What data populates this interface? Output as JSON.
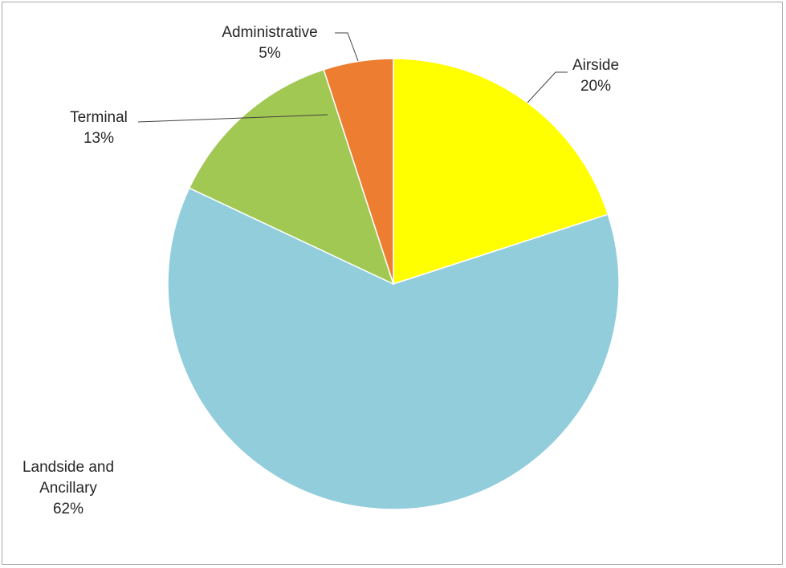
{
  "chart_data": {
    "type": "pie",
    "title": "",
    "legend": "none",
    "start_angle_deg": 0,
    "direction": "clockwise",
    "slices": [
      {
        "label": "Airside",
        "value": 20,
        "display": "20%",
        "color": "#ffff00"
      },
      {
        "label": "Landside and Ancillary",
        "value": 62,
        "display": "62%",
        "color": "#92cddc"
      },
      {
        "label": "Terminal",
        "value": 13,
        "display": "13%",
        "color": "#a1c853"
      },
      {
        "label": "Administrative",
        "value": 5,
        "display": "5%",
        "color": "#ed7d31"
      }
    ]
  }
}
